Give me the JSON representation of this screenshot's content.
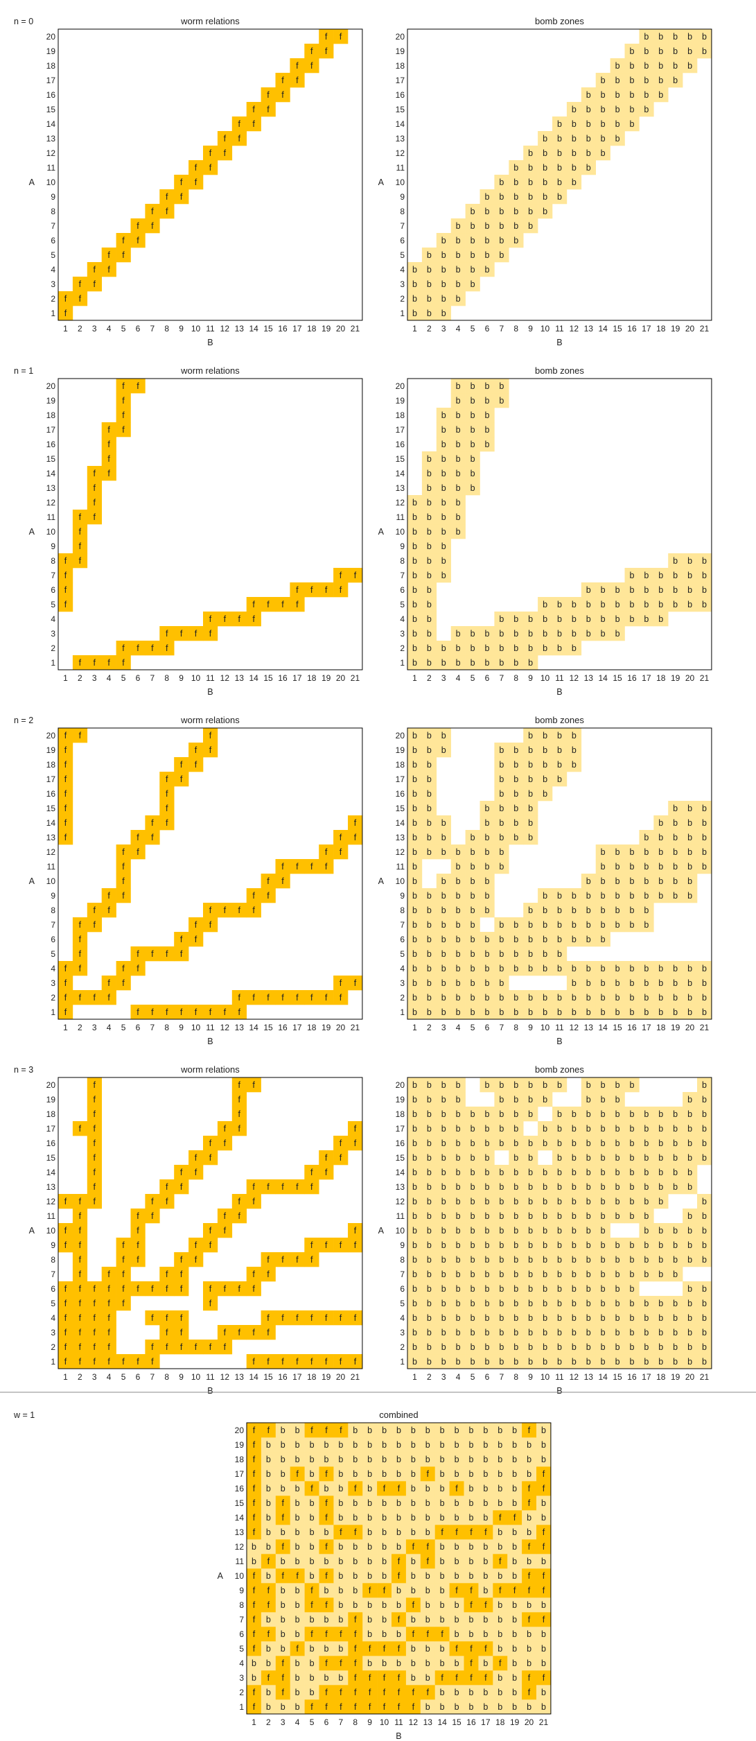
{
  "colors": {
    "worm": "#FFC000",
    "bomb": "#FFE699",
    "frame": "#000000",
    "divider": "#888888",
    "text": "#222222"
  },
  "chart_data": [
    {
      "type": "heatmap",
      "id": "n0-worm",
      "row_label": "n =  0",
      "title": "worm relations",
      "xlabel": "B",
      "ylabel": "A",
      "x": [
        1,
        2,
        3,
        4,
        5,
        6,
        7,
        8,
        9,
        10,
        11,
        12,
        13,
        14,
        15,
        16,
        17,
        18,
        19,
        20,
        21
      ],
      "y": [
        1,
        2,
        3,
        4,
        5,
        6,
        7,
        8,
        9,
        10,
        11,
        12,
        13,
        14,
        15,
        16,
        17,
        18,
        19,
        20
      ],
      "cell_letter": "f",
      "cell_color": "#FFC000",
      "cells": {
        "1": "1",
        "2": "1-2",
        "3": "2-3",
        "4": "3-4",
        "5": "4-5",
        "6": "5-6",
        "7": "6-7",
        "8": "7-8",
        "9": "8-9",
        "10": "9-10",
        "11": "10-11",
        "12": "11-12",
        "13": "12-13",
        "14": "13-14",
        "15": "14-15",
        "16": "15-16",
        "17": "16-17",
        "18": "17-18",
        "19": "18-19",
        "20": "19-20"
      }
    },
    {
      "type": "heatmap",
      "id": "n0-bomb",
      "title": "bomb zones",
      "xlabel": "B",
      "ylabel": "A",
      "x": [
        1,
        2,
        3,
        4,
        5,
        6,
        7,
        8,
        9,
        10,
        11,
        12,
        13,
        14,
        15,
        16,
        17,
        18,
        19,
        20,
        21
      ],
      "y": [
        1,
        2,
        3,
        4,
        5,
        6,
        7,
        8,
        9,
        10,
        11,
        12,
        13,
        14,
        15,
        16,
        17,
        18,
        19,
        20
      ],
      "cell_letter": "b",
      "cell_color": "#FFE699",
      "cells": {
        "1": "1-3",
        "2": "1-4",
        "3": "1-5",
        "4": "1-6",
        "5": "2-7",
        "6": "3-8",
        "7": "4-9",
        "8": "5-10",
        "9": "6-11",
        "10": "7-12",
        "11": "8-13",
        "12": "9-14",
        "13": "10-15",
        "14": "11-16",
        "15": "12-17",
        "16": "13-18",
        "17": "14-19",
        "18": "15-20",
        "19": "16-21",
        "20": "17-21"
      }
    },
    {
      "type": "heatmap",
      "id": "n1-worm",
      "row_label": "n =  1",
      "title": "worm relations",
      "xlabel": "B",
      "ylabel": "A",
      "x": [
        1,
        2,
        3,
        4,
        5,
        6,
        7,
        8,
        9,
        10,
        11,
        12,
        13,
        14,
        15,
        16,
        17,
        18,
        19,
        20,
        21
      ],
      "y": [
        1,
        2,
        3,
        4,
        5,
        6,
        7,
        8,
        9,
        10,
        11,
        12,
        13,
        14,
        15,
        16,
        17,
        18,
        19,
        20
      ],
      "cell_letter": "f",
      "cell_color": "#FFC000",
      "cells": {
        "1": "2-5",
        "2": "5-8",
        "3": "8-11",
        "4": "11-14",
        "5": "1,14-17",
        "6": "1,17-20",
        "7": "1,20-21",
        "8": "1-2",
        "9": "2",
        "10": "2",
        "11": "2-3",
        "12": "3",
        "13": "3",
        "14": "3-4",
        "15": "4",
        "16": "4",
        "17": "4-5",
        "18": "5",
        "19": "5",
        "20": "5-6"
      }
    },
    {
      "type": "heatmap",
      "id": "n1-bomb",
      "title": "bomb zones",
      "xlabel": "B",
      "ylabel": "A",
      "x": [
        1,
        2,
        3,
        4,
        5,
        6,
        7,
        8,
        9,
        10,
        11,
        12,
        13,
        14,
        15,
        16,
        17,
        18,
        19,
        20,
        21
      ],
      "y": [
        1,
        2,
        3,
        4,
        5,
        6,
        7,
        8,
        9,
        10,
        11,
        12,
        13,
        14,
        15,
        16,
        17,
        18,
        19,
        20
      ],
      "cell_letter": "b",
      "cell_color": "#FFE699",
      "cells": {
        "1": "1-9",
        "2": "1-12",
        "3": "1-2,4-15",
        "4": "1-2,7-18",
        "5": "1-2,10-21",
        "6": "1-2,13-21",
        "7": "1-3,16-21",
        "8": "1-3,19-21",
        "9": "1-3",
        "10": "1-4",
        "11": "1-4",
        "12": "1-4",
        "13": "2-5",
        "14": "2-5",
        "15": "2-5",
        "16": "3-6",
        "17": "3-6",
        "18": "3-6",
        "19": "4-7",
        "20": "4-7"
      }
    },
    {
      "type": "heatmap",
      "id": "n2-worm",
      "row_label": "n =  2",
      "title": "worm relations",
      "xlabel": "B",
      "ylabel": "A",
      "x": [
        1,
        2,
        3,
        4,
        5,
        6,
        7,
        8,
        9,
        10,
        11,
        12,
        13,
        14,
        15,
        16,
        17,
        18,
        19,
        20,
        21
      ],
      "y": [
        1,
        2,
        3,
        4,
        5,
        6,
        7,
        8,
        9,
        10,
        11,
        12,
        13,
        14,
        15,
        16,
        17,
        18,
        19,
        20
      ],
      "cell_letter": "f",
      "cell_color": "#FFC000",
      "cells": {
        "1": "1,6-13",
        "2": "1-4,13-20",
        "3": "1,4-5,20-21",
        "4": "1-2,5-6",
        "5": "2,6-9",
        "6": "2,9-10",
        "7": "2-3,10-11",
        "8": "3-4,11-14",
        "9": "4-5,14-15",
        "10": "5,15-16",
        "11": "5,16-19",
        "12": "5-6,19-20",
        "13": "1,6-7,20-21",
        "14": "1,7-8,21",
        "15": "1,8",
        "16": "1,8",
        "17": "1,8-9",
        "18": "1,9-10",
        "19": "1,10-11",
        "20": "1-2,11"
      }
    },
    {
      "type": "heatmap",
      "id": "n2-bomb",
      "title": "bomb zones",
      "xlabel": "B",
      "ylabel": "A",
      "x": [
        1,
        2,
        3,
        4,
        5,
        6,
        7,
        8,
        9,
        10,
        11,
        12,
        13,
        14,
        15,
        16,
        17,
        18,
        19,
        20,
        21
      ],
      "y": [
        1,
        2,
        3,
        4,
        5,
        6,
        7,
        8,
        9,
        10,
        11,
        12,
        13,
        14,
        15,
        16,
        17,
        18,
        19,
        20
      ],
      "cell_letter": "b",
      "cell_color": "#FFE699",
      "cells": {
        "1": "1-21",
        "2": "1-21",
        "3": "1-7,12-21",
        "4": "1-21",
        "5": "1-11",
        "6": "1-14",
        "7": "1-5,7-17",
        "8": "1-6,9-17",
        "9": "1-6,10-20",
        "10": "1,3-6,13-20",
        "11": "1,4-7,14-21",
        "12": "1-7,14-21",
        "13": "1-3,5-9,17-21",
        "14": "1-3,6-9,18-21",
        "15": "1-2,6-9,19-21",
        "16": "1-2,7-10",
        "17": "1-2,7-11",
        "18": "1-2,7-12",
        "19": "1-3,7-12",
        "20": "1-3,9-12"
      }
    },
    {
      "type": "heatmap",
      "id": "n3-worm",
      "row_label": "n =  3",
      "title": "worm relations",
      "xlabel": "B",
      "ylabel": "A",
      "x": [
        1,
        2,
        3,
        4,
        5,
        6,
        7,
        8,
        9,
        10,
        11,
        12,
        13,
        14,
        15,
        16,
        17,
        18,
        19,
        20,
        21
      ],
      "y": [
        1,
        2,
        3,
        4,
        5,
        6,
        7,
        8,
        9,
        10,
        11,
        12,
        13,
        14,
        15,
        16,
        17,
        18,
        19,
        20
      ],
      "cell_letter": "f",
      "cell_color": "#FFC000",
      "cells": {
        "1": "1-7,14-21",
        "2": "1-4,7-12",
        "3": "1-4,8-9,12-15",
        "4": "1-4,7-9,15-21",
        "5": "1-5,11",
        "6": "1-9,11-14",
        "7": "2,4-5,8-9,14-15",
        "8": "2,5-6,9-10,15-18",
        "9": "1-2,5-6,10-11,18-21",
        "10": "1-2,6,11-12,21",
        "11": "2,6-7,12-13",
        "12": "1-3,7-8,13-14",
        "13": "3,8-9,14-18",
        "14": "3,9-10,18-19",
        "15": "3,10-11,19-20",
        "16": "3,11-12,20-21",
        "17": "2-3,12-13,21",
        "18": "3,13",
        "19": "3,13",
        "20": "3,13-14"
      }
    },
    {
      "type": "heatmap",
      "id": "n3-bomb",
      "title": "bomb zones",
      "xlabel": "B",
      "ylabel": "A",
      "x": [
        1,
        2,
        3,
        4,
        5,
        6,
        7,
        8,
        9,
        10,
        11,
        12,
        13,
        14,
        15,
        16,
        17,
        18,
        19,
        20,
        21
      ],
      "y": [
        1,
        2,
        3,
        4,
        5,
        6,
        7,
        8,
        9,
        10,
        11,
        12,
        13,
        14,
        15,
        16,
        17,
        18,
        19,
        20
      ],
      "cell_letter": "b",
      "cell_color": "#FFE699",
      "cells": {
        "1": "1-21",
        "2": "1-21",
        "3": "1-21",
        "4": "1-21",
        "5": "1-21",
        "6": "1-16,20-21",
        "7": "1-19",
        "8": "1-21",
        "9": "1-21",
        "10": "1-14,17-21",
        "11": "1-17,20-21",
        "12": "1-18,21",
        "13": "1-20",
        "14": "1-20",
        "15": "1-6,8-9,11-21",
        "16": "1-21",
        "17": "1-8,10-21",
        "18": "1-9,11-21",
        "19": "1-4,7-10,13-15,20-21",
        "20": "1-4,6-11,13-16,21"
      }
    },
    {
      "type": "heatmap",
      "id": "combined",
      "row_label": "w =  1",
      "title": "combined",
      "xlabel": "B",
      "ylabel": "A",
      "x": [
        1,
        2,
        3,
        4,
        5,
        6,
        7,
        8,
        9,
        10,
        11,
        12,
        13,
        14,
        15,
        16,
        17,
        18,
        19,
        20,
        21
      ],
      "y": [
        1,
        2,
        3,
        4,
        5,
        6,
        7,
        8,
        9,
        10,
        11,
        12,
        13,
        14,
        15,
        16,
        17,
        18,
        19,
        20
      ],
      "letters": {
        "1": "fbbbffffffffbbbbbbbbb",
        "2": "fbfbbffffffffbbbbbbfb",
        "3": "bffbbbbffffbbffffbbff",
        "4": "bbfbbfffbbbbbbbfbfbbb",
        "5": "fbbfbbbffffbbbfffbbbb",
        "6": "ffbbffffbbbfffbbbbbbb",
        "7": "fbbbbbbfbbfbbbbbbbbff",
        "8": "ffbbffbbbbbfbbbffbbbb",
        "9": "ffbbfbbbffbbbbffbffff",
        "10": "fbffbfbbbbfbbbbbbbbff",
        "11": "bfbbbbbbbbfbfbbbbfbbb",
        "12": "bbfbbfbbbbbffbbbbbbff",
        "13": "fbbbbbffbbbbbffffbbbf",
        "14": "fbfbbfbbbbbbbbbbbffbb",
        "15": "fbfbbfbbbbbbbbbbbbbfb",
        "16": "fbbbfbbfbffbbbfbbbbff",
        "17": "fbbfbfbbbbbbfbbbbbbbf",
        "18": "fbbbbbbbbbbbbbbbbbbbb",
        "19": "fbbbbbbbbbbbbbbbbbbbb",
        "20": "ffbbfffbbbbbbbbbbbbfb"
      }
    }
  ]
}
